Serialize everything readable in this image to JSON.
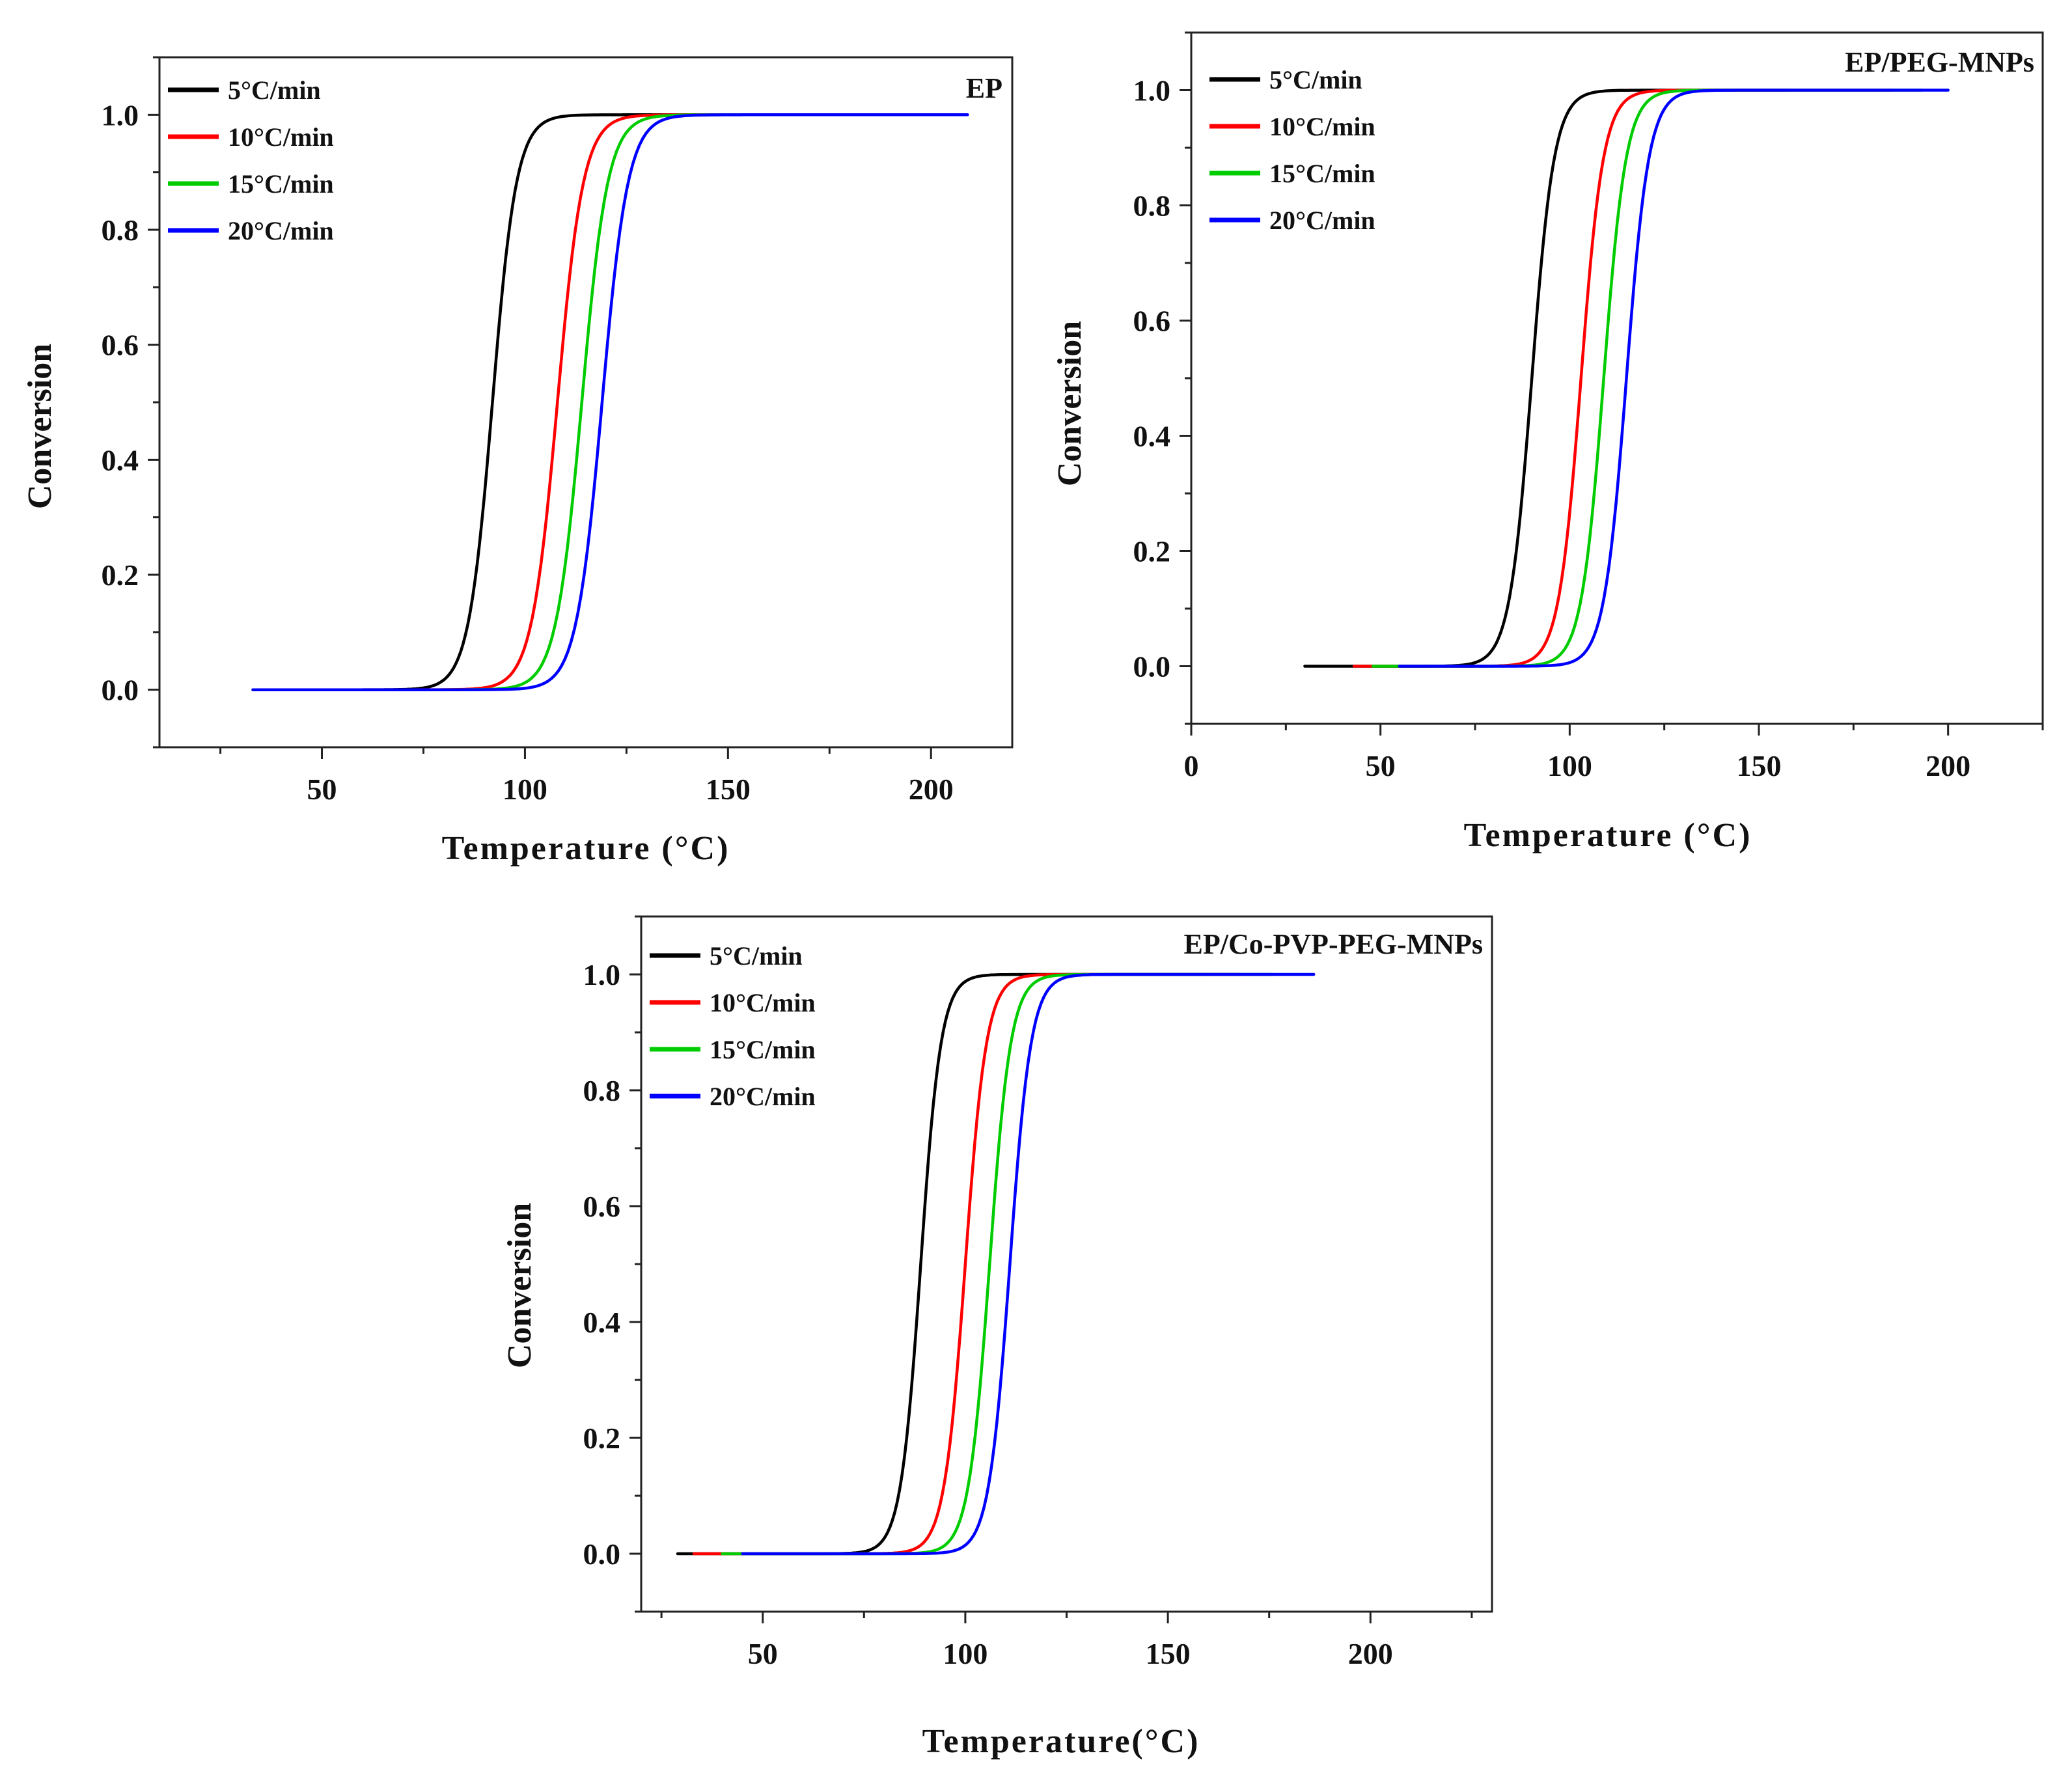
{
  "chart_data": [
    {
      "type": "line",
      "title": "EP",
      "xlabel": "Temperature (°C)",
      "ylabel": "Conversion",
      "xlim": [
        10,
        220
      ],
      "ylim": [
        -0.1,
        1.1
      ],
      "xticks": [
        50,
        100,
        150,
        200
      ],
      "yticks": [
        0.0,
        0.2,
        0.4,
        0.6,
        0.8,
        1.0
      ],
      "xtick_labels": [
        "50",
        "100",
        "150",
        "200"
      ],
      "ytick_labels": [
        "0.0",
        "0.2",
        "0.4",
        "0.6",
        "0.8",
        "1.0"
      ],
      "legend_position": "top-left",
      "series": [
        {
          "name": "5°C/min",
          "color": "#000000",
          "x_start": 33,
          "x_end": 161,
          "t50": 92,
          "width": 13
        },
        {
          "name": "10°C/min",
          "color": "#ff0000",
          "x_start": 33,
          "x_end": 186,
          "t50": 108,
          "width": 14
        },
        {
          "name": "15°C/min",
          "color": "#00cc00",
          "x_start": 33,
          "x_end": 200,
          "t50": 114,
          "width": 14
        },
        {
          "name": "20°C/min",
          "color": "#0000ff",
          "x_start": 33,
          "x_end": 209,
          "t50": 119,
          "width": 14
        }
      ]
    },
    {
      "type": "line",
      "title": "EP/PEG-MNPs",
      "xlabel": "Temperature (°C)",
      "ylabel": "Conversion",
      "xlim": [
        0,
        225
      ],
      "ylim": [
        -0.1,
        1.1
      ],
      "xticks": [
        0,
        50,
        100,
        150,
        200
      ],
      "yticks": [
        0.0,
        0.2,
        0.4,
        0.6,
        0.8,
        1.0
      ],
      "xtick_labels": [
        "0",
        "50",
        "100",
        "150",
        "200"
      ],
      "ytick_labels": [
        "0.0",
        "0.2",
        "0.4",
        "0.6",
        "0.8",
        "1.0"
      ],
      "legend_position": "top-left",
      "series": [
        {
          "name": "5°C/min",
          "color": "#000000",
          "x_start": 30,
          "x_end": 158,
          "t50": 90,
          "width": 13
        },
        {
          "name": "10°C/min",
          "color": "#ff0000",
          "x_start": 43,
          "x_end": 185,
          "t50": 103,
          "width": 13
        },
        {
          "name": "15°C/min",
          "color": "#00cc00",
          "x_start": 48,
          "x_end": 193,
          "t50": 109,
          "width": 13
        },
        {
          "name": "20°C/min",
          "color": "#0000ff",
          "x_start": 55,
          "x_end": 200,
          "t50": 115,
          "width": 13
        }
      ]
    },
    {
      "type": "line",
      "title": "EP/Co-PVP-PEG-MNPs",
      "xlabel": "Temperature(°C)",
      "ylabel": "Conversion",
      "xlim": [
        20,
        230
      ],
      "ylim": [
        -0.1,
        1.1
      ],
      "xticks": [
        50,
        100,
        150,
        200
      ],
      "yticks": [
        0.0,
        0.2,
        0.4,
        0.6,
        0.8,
        1.0
      ],
      "xtick_labels": [
        "50",
        "100",
        "150",
        "200"
      ],
      "ytick_labels": [
        "0.0",
        "0.2",
        "0.4",
        "0.6",
        "0.8",
        "1.0"
      ],
      "legend_position": "top-left",
      "series": [
        {
          "name": "5°C/min",
          "color": "#000000",
          "x_start": 29,
          "x_end": 160,
          "t50": 89,
          "width": 11
        },
        {
          "name": "10°C/min",
          "color": "#ff0000",
          "x_start": 33,
          "x_end": 168,
          "t50": 100,
          "width": 11.5
        },
        {
          "name": "15°C/min",
          "color": "#00cc00",
          "x_start": 40,
          "x_end": 176,
          "t50": 106,
          "width": 11.5
        },
        {
          "name": "20°C/min",
          "color": "#0000ff",
          "x_start": 45,
          "x_end": 186,
          "t50": 111,
          "width": 11.5
        }
      ]
    }
  ]
}
